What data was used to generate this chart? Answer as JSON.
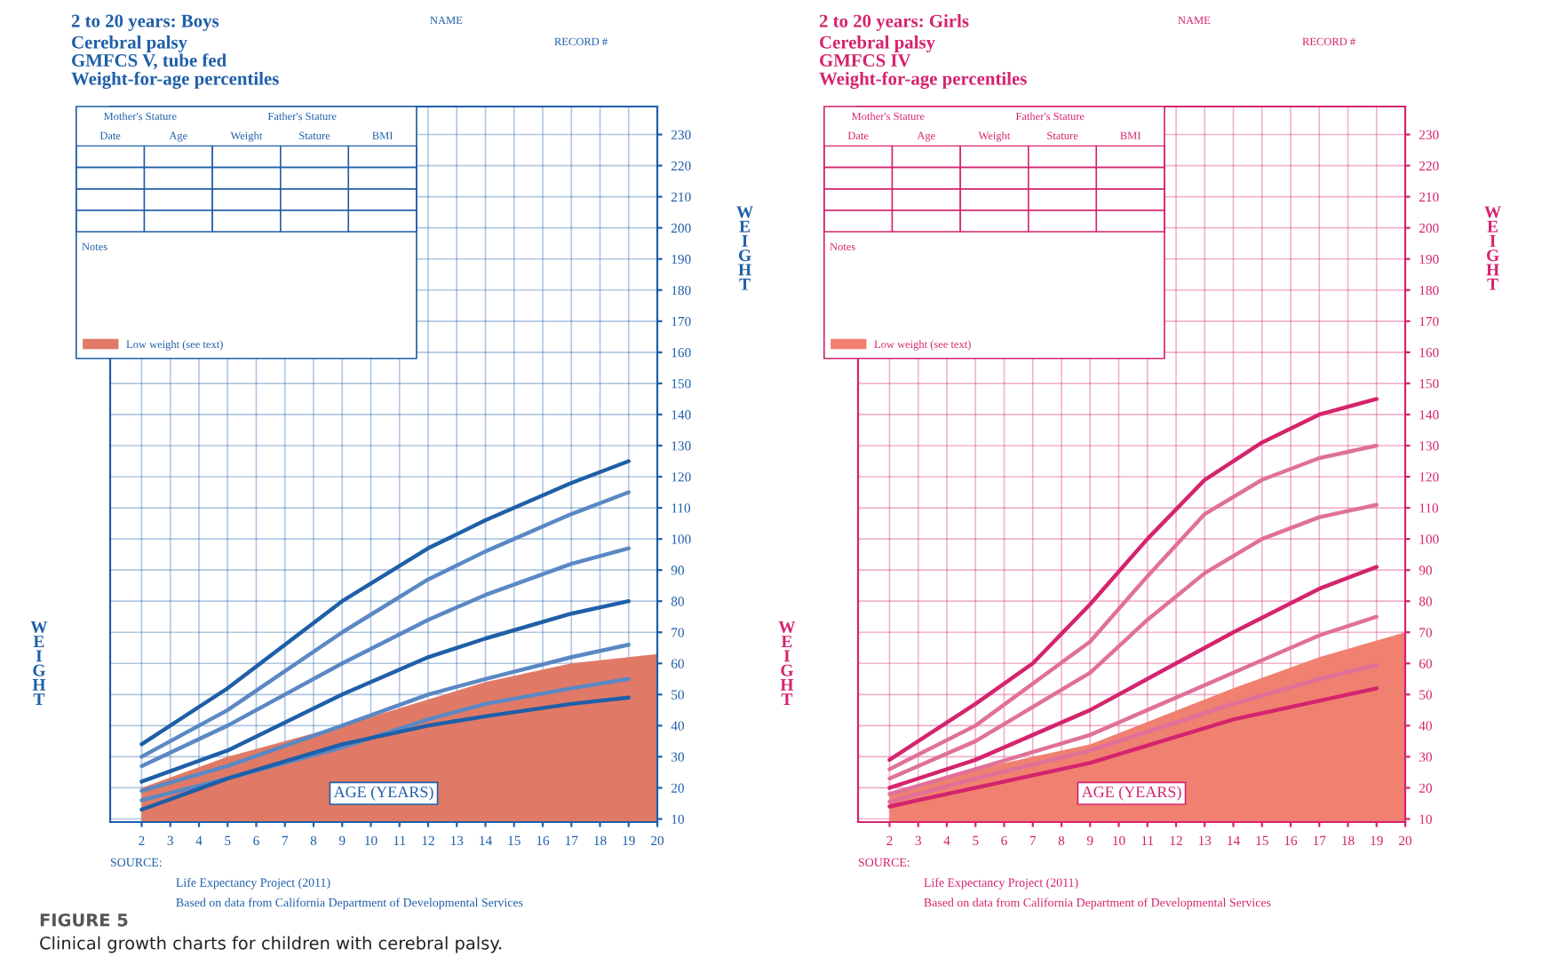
{
  "chart_data": [
    {
      "type": "line",
      "title": "2 to 20 years: Boys",
      "subtitle": "Cerebral palsy\nGMFCS V, tube fed\nWeight-for-age percentiles",
      "xlabel": "AGE (YEARS)",
      "ylabel": "WEIGHT",
      "xlim": [
        0.9,
        20
      ],
      "xticks": [
        2,
        3,
        4,
        5,
        6,
        7,
        8,
        9,
        10,
        11,
        12,
        13,
        14,
        15,
        16,
        17,
        18,
        19,
        20
      ],
      "ylim": [
        9,
        239
      ],
      "yticks": [
        10,
        20,
        30,
        40,
        50,
        60,
        70,
        80,
        90,
        100,
        110,
        120,
        130,
        140,
        150,
        160,
        170,
        180,
        190,
        200,
        210,
        220,
        230
      ],
      "grid": true,
      "legend": "top left",
      "series": [
        {
          "type": "area",
          "name": "Low weight (see text)",
          "color": "#e07a66",
          "x": [
            2,
            5,
            9,
            14,
            17,
            20
          ],
          "values": [
            20,
            30,
            40,
            54,
            60,
            63
          ]
        },
        {
          "color": "#1f5fa8",
          "x": [
            2,
            5,
            9,
            12,
            14,
            17,
            19
          ],
          "values": [
            34,
            52,
            80,
            97,
            106,
            118,
            125
          ]
        },
        {
          "color": "#5a88c4",
          "x": [
            2,
            5,
            9,
            12,
            14,
            17,
            19
          ],
          "values": [
            30,
            45,
            70,
            87,
            96,
            108,
            115
          ]
        },
        {
          "color": "#5a88c4",
          "x": [
            2,
            5,
            9,
            12,
            14,
            17,
            19
          ],
          "values": [
            27,
            40,
            60,
            74,
            82,
            92,
            97
          ]
        },
        {
          "color": "#1f5fa8",
          "x": [
            2,
            5,
            9,
            12,
            14,
            17,
            19
          ],
          "values": [
            22,
            32,
            50,
            62,
            68,
            76,
            80
          ]
        },
        {
          "color": "#5a88c4",
          "x": [
            2,
            5,
            9,
            12,
            14,
            17,
            19
          ],
          "values": [
            19,
            27,
            40,
            50,
            55,
            62,
            66
          ]
        },
        {
          "color": "#5a88c4",
          "x": [
            2,
            5,
            9,
            12,
            14,
            17,
            19
          ],
          "values": [
            16,
            23,
            33,
            42,
            47,
            52,
            55
          ]
        },
        {
          "color": "#1f5fa8",
          "x": [
            2,
            5,
            9,
            12,
            14,
            17,
            19
          ],
          "values": [
            13,
            23,
            34,
            40,
            43,
            47,
            49
          ]
        }
      ],
      "annotations": [
        "NAME",
        "RECORD #",
        "Mother's Stature",
        "Father's Stature",
        "Date",
        "Age",
        "Weight",
        "Stature",
        "BMI",
        "Notes",
        "WEIGHT",
        "SOURCE:",
        "Life Expectancy Project (2011)",
        "Based on data from California Department of Developmental Services",
        "FIGURE 5",
        "Clinical growth charts for children with cerebral palsy."
      ]
    },
    {
      "type": "line",
      "title": "2 to 20 years: Girls",
      "subtitle": "Cerebral palsy\nGMFCS IV\nWeight-for-age percentiles",
      "xlabel": "AGE (YEARS)",
      "ylabel": "WEIGHT",
      "xlim": [
        0.9,
        20
      ],
      "xticks": [
        2,
        3,
        4,
        5,
        6,
        7,
        8,
        9,
        10,
        11,
        12,
        13,
        14,
        15,
        16,
        17,
        18,
        19,
        20
      ],
      "ylim": [
        9,
        239
      ],
      "yticks": [
        10,
        20,
        30,
        40,
        50,
        60,
        70,
        80,
        90,
        100,
        110,
        120,
        130,
        140,
        150,
        160,
        170,
        180,
        190,
        200,
        210,
        220,
        230
      ],
      "grid": true,
      "legend": "top left",
      "series": [
        {
          "type": "area",
          "name": "Low weight (see text)",
          "color": "#f08070",
          "x": [
            2,
            5,
            9,
            14,
            17,
            20
          ],
          "values": [
            18.5,
            26,
            34,
            52,
            62,
            70
          ]
        },
        {
          "color": "#d4246e",
          "x": [
            2,
            5,
            7,
            9,
            11,
            13,
            15,
            17,
            19
          ],
          "values": [
            29,
            47,
            60,
            79,
            100,
            119,
            131,
            140,
            145
          ]
        },
        {
          "color": "#e0709a",
          "x": [
            2,
            5,
            9,
            11,
            13,
            15,
            17,
            19
          ],
          "values": [
            26,
            40,
            67,
            88,
            108,
            119,
            126,
            130
          ]
        },
        {
          "color": "#e0709a",
          "x": [
            2,
            5,
            9,
            11,
            13,
            15,
            17,
            19
          ],
          "values": [
            23,
            35,
            57,
            74,
            89,
            100,
            107,
            111
          ]
        },
        {
          "color": "#d4246e",
          "x": [
            2,
            5,
            9,
            11,
            14,
            17,
            19
          ],
          "values": [
            20,
            29,
            45,
            55,
            70,
            84,
            91
          ]
        },
        {
          "color": "#e0709a",
          "x": [
            2,
            5,
            9,
            14,
            17,
            19
          ],
          "values": [
            18,
            26,
            37,
            57,
            69,
            75
          ]
        },
        {
          "color": "#e0709a",
          "x": [
            2,
            5,
            9,
            14,
            17,
            19
          ],
          "values": [
            15.5,
            23,
            32,
            47,
            55,
            59.5
          ]
        },
        {
          "color": "#d4246e",
          "x": [
            2,
            5,
            9,
            14,
            17,
            19
          ],
          "values": [
            14,
            20,
            28,
            42,
            48,
            52
          ]
        }
      ],
      "annotations": [
        "NAME",
        "RECORD #",
        "Mother's Stature",
        "Father's Stature",
        "Date",
        "Age",
        "Weight",
        "Stature",
        "BMI",
        "Notes",
        "WEIGHT",
        "SOURCE:",
        "Life Expectancy Project (2011)",
        "Based on data from California Department of Developmental Services"
      ]
    }
  ]
}
